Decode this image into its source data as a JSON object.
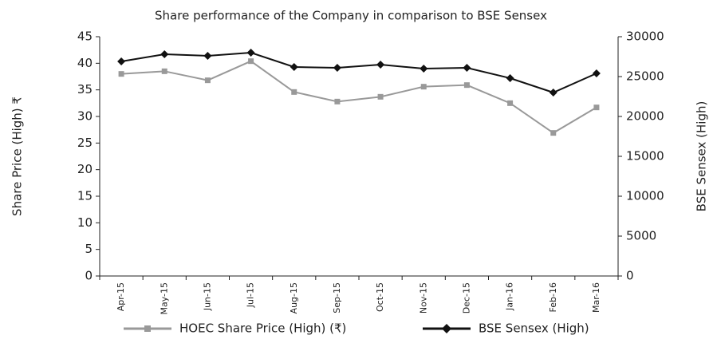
{
  "chart_data": {
    "type": "line",
    "title": "Share performance of the Company in comparison to BSE Sensex",
    "y_label": "Share Price (High) ₹",
    "y2_label": "BSE Sensex (High)",
    "categories": [
      "Apr-15",
      "May-15",
      "Jun-15",
      "Jul-15",
      "Aug-15",
      "Sep-15",
      "Oct-15",
      "Nov-15",
      "Dec-15",
      "Jan-16",
      "Feb-16",
      "Mar-16"
    ],
    "series": [
      {
        "name": "HOEC Share Price (High) (₹)",
        "color": "#999999",
        "marker": "square",
        "values": [
          38.0,
          38.5,
          36.8,
          40.4,
          34.6,
          32.8,
          33.7,
          35.6,
          35.9,
          32.5,
          26.9,
          31.7
        ]
      },
      {
        "name": "BSE Sensex (High)",
        "color": "#111111",
        "marker": "diamond",
        "axis": "y2",
        "values": [
          26900,
          27800,
          27600,
          28000,
          26200,
          26100,
          26500,
          26000,
          26100,
          24800,
          23000,
          25400
        ]
      }
    ],
    "ylim": [
      0,
      45
    ],
    "yticks": [
      0,
      5,
      10,
      15,
      20,
      25,
      30,
      35,
      40,
      45
    ],
    "y2lim": [
      0,
      30000
    ],
    "y2ticks": [
      0,
      5000,
      10000,
      15000,
      20000,
      25000,
      30000
    ],
    "grid": false,
    "legend": "bottom"
  }
}
